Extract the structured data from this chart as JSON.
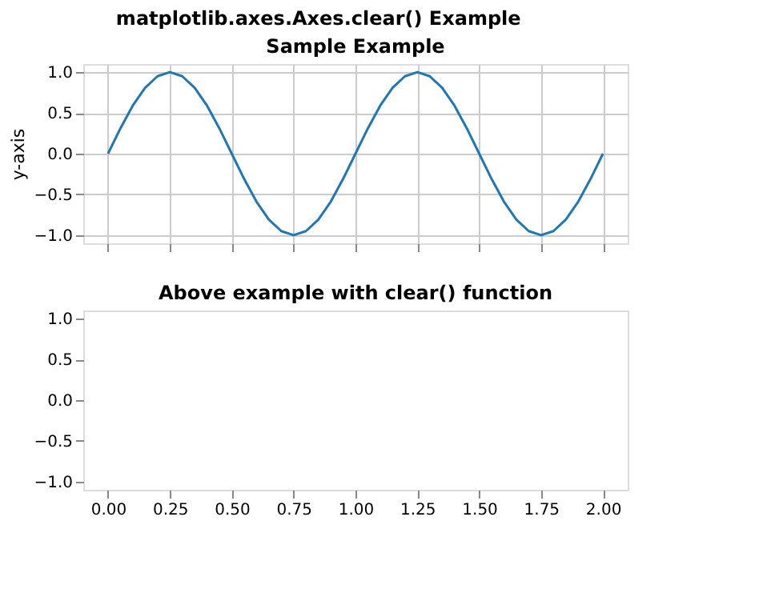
{
  "chart_data": [
    {
      "type": "line",
      "title": "Sample Example",
      "subtitle": "matplotlib.axes.Axes.clear() Example",
      "ylabel": "y-axis",
      "x": [
        0,
        0.05,
        0.1,
        0.15,
        0.2,
        0.25,
        0.3,
        0.35,
        0.4,
        0.45,
        0.5,
        0.55,
        0.6,
        0.65,
        0.7,
        0.75,
        0.8,
        0.85,
        0.9,
        0.95,
        1,
        1.05,
        1.1,
        1.15,
        1.2,
        1.25,
        1.3,
        1.35,
        1.4,
        1.45,
        1.5,
        1.55,
        1.6,
        1.65,
        1.7,
        1.75,
        1.8,
        1.85,
        1.9,
        1.95,
        2
      ],
      "series": [
        {
          "color": "#1f77b4",
          "values": [
            0,
            0.31,
            0.59,
            0.81,
            0.95,
            1,
            0.95,
            0.81,
            0.59,
            0.31,
            0,
            -0.31,
            -0.59,
            -0.81,
            -0.95,
            -1,
            -0.95,
            -0.81,
            -0.59,
            -0.31,
            0,
            0.31,
            0.59,
            0.81,
            0.95,
            1,
            0.95,
            0.81,
            0.59,
            0.31,
            0,
            -0.31,
            -0.59,
            -0.81,
            -0.95,
            -1,
            -0.95,
            -0.81,
            -0.59,
            -0.31,
            0
          ]
        }
      ],
      "xlim": [
        -0.1,
        2.1
      ],
      "ylim": [
        -1.1,
        1.1
      ],
      "xticks": [
        0,
        0.25,
        0.5,
        0.75,
        1,
        1.25,
        1.5,
        1.75,
        2
      ],
      "yticks": [
        {
          "value": -1,
          "label": "−1.0"
        },
        {
          "value": -0.5,
          "label": "−0.5"
        },
        {
          "value": 0,
          "label": "0.0"
        },
        {
          "value": 0.5,
          "label": "0.5"
        },
        {
          "value": 1,
          "label": "1.0"
        }
      ],
      "line_style": "solid",
      "grid": true,
      "tick_labels": "y"
    },
    {
      "type": "line",
      "title": "Above example with clear() function",
      "xlim": [
        -0.1,
        2.1
      ],
      "ylim": [
        -1.1,
        1.1
      ],
      "xticks": [
        {
          "value": 0,
          "label": "0.00"
        },
        {
          "value": 0.25,
          "label": "0.25"
        },
        {
          "value": 0.5,
          "label": "0.50"
        },
        {
          "value": 0.75,
          "label": "0.75"
        },
        {
          "value": 1,
          "label": "1.00"
        },
        {
          "value": 1.25,
          "label": "1.25"
        },
        {
          "value": 1.5,
          "label": "1.50"
        },
        {
          "value": 1.75,
          "label": "1.75"
        },
        {
          "value": 2,
          "label": "2.00"
        }
      ],
      "yticks": [
        {
          "value": -1,
          "label": "−1.0"
        },
        {
          "value": -0.5,
          "label": "−0.5"
        },
        {
          "value": 0,
          "label": "0.0"
        },
        {
          "value": 0.5,
          "label": "0.5"
        },
        {
          "value": 1,
          "label": "1.0"
        }
      ]
    }
  ]
}
